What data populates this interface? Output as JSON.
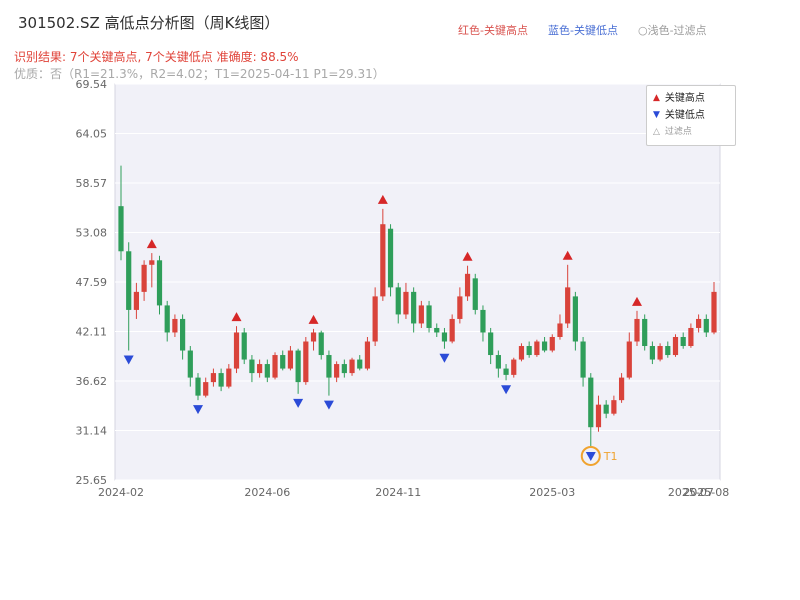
{
  "header": {
    "title": "301502.SZ 高低点分析图（周K线图）",
    "legend_top": [
      {
        "label": "红色-关键高点",
        "color": "#d9534f"
      },
      {
        "label": "蓝色-关键低点",
        "color": "#4a6fd4"
      },
      {
        "label": "○浅色-过滤点",
        "color": "#9a9a9a"
      }
    ],
    "result_line": "识别结果: 7个关键高点, 7个关键低点   准确度: 88.5%",
    "quality_line": "优质：否（R1=21.3%，R2=4.02；T1=2025-04-11 P1=29.31）",
    "recognition": {
      "key_high_count": 7,
      "key_low_count": 7,
      "accuracy": "88.5%"
    }
  },
  "chart_data": {
    "type": "candlestick",
    "symbol": "301502.SZ",
    "period": "weekly",
    "title": "301502.SZ 高低点分析图（周K线图）",
    "ylim": [
      25.65,
      69.54
    ],
    "y_ticks": [
      69.54,
      64.05,
      58.57,
      53.08,
      47.59,
      42.11,
      36.62,
      31.14,
      25.65
    ],
    "x_ticks": [
      {
        "index": 0,
        "label": "2024-02"
      },
      {
        "index": 19,
        "label": "2024-06"
      },
      {
        "index": 36,
        "label": "2024-11"
      },
      {
        "index": 56,
        "label": "2025-03"
      },
      {
        "index": 74,
        "label": "2025-07"
      },
      {
        "index": 76,
        "label": "2025-08"
      }
    ],
    "candles": [
      [
        56.0,
        60.5,
        50.0,
        51.0
      ],
      [
        51.0,
        52.0,
        40.0,
        44.5
      ],
      [
        44.5,
        47.5,
        43.5,
        46.5
      ],
      [
        46.5,
        50.0,
        45.5,
        49.5
      ],
      [
        49.5,
        50.8,
        47.0,
        50.0
      ],
      [
        50.0,
        50.5,
        44.0,
        45.0
      ],
      [
        45.0,
        45.5,
        41.0,
        42.0
      ],
      [
        42.0,
        44.0,
        41.5,
        43.5
      ],
      [
        43.5,
        44.0,
        39.0,
        40.0
      ],
      [
        40.0,
        40.5,
        36.0,
        37.0
      ],
      [
        37.0,
        37.5,
        34.5,
        35.0
      ],
      [
        35.0,
        37.0,
        34.8,
        36.5
      ],
      [
        36.5,
        38.0,
        36.0,
        37.5
      ],
      [
        37.5,
        38.0,
        35.5,
        36.0
      ],
      [
        36.0,
        38.5,
        35.8,
        38.0
      ],
      [
        38.0,
        42.7,
        37.5,
        42.0
      ],
      [
        42.0,
        42.5,
        38.5,
        39.0
      ],
      [
        39.0,
        39.5,
        36.5,
        37.5
      ],
      [
        37.5,
        39.0,
        37.0,
        38.5
      ],
      [
        38.5,
        39.0,
        36.5,
        37.0
      ],
      [
        37.0,
        39.8,
        36.8,
        39.5
      ],
      [
        39.5,
        40.0,
        37.8,
        38.0
      ],
      [
        38.0,
        40.5,
        37.8,
        40.0
      ],
      [
        40.0,
        40.2,
        35.2,
        36.5
      ],
      [
        36.5,
        41.5,
        36.2,
        41.0
      ],
      [
        41.0,
        42.4,
        40.0,
        42.0
      ],
      [
        42.0,
        42.2,
        39.0,
        39.5
      ],
      [
        39.5,
        40.0,
        35.0,
        37.0
      ],
      [
        37.0,
        38.8,
        36.5,
        38.5
      ],
      [
        38.5,
        39.0,
        37.0,
        37.5
      ],
      [
        37.5,
        39.2,
        37.2,
        39.0
      ],
      [
        39.0,
        39.5,
        37.8,
        38.0
      ],
      [
        38.0,
        41.5,
        37.8,
        41.0
      ],
      [
        41.0,
        47.0,
        40.5,
        46.0
      ],
      [
        46.0,
        55.7,
        45.5,
        54.0
      ],
      [
        53.5,
        54.0,
        46.0,
        47.0
      ],
      [
        47.0,
        47.5,
        43.0,
        44.0
      ],
      [
        44.0,
        47.5,
        43.5,
        46.5
      ],
      [
        46.5,
        47.0,
        42.0,
        43.0
      ],
      [
        43.0,
        45.5,
        42.5,
        45.0
      ],
      [
        45.0,
        45.5,
        42.0,
        42.5
      ],
      [
        42.5,
        43.0,
        41.5,
        42.0
      ],
      [
        42.0,
        42.5,
        40.2,
        41.0
      ],
      [
        41.0,
        44.0,
        40.8,
        43.5
      ],
      [
        43.5,
        47.0,
        43.0,
        46.0
      ],
      [
        46.0,
        49.4,
        45.5,
        48.5
      ],
      [
        48.0,
        48.5,
        44.0,
        44.5
      ],
      [
        44.5,
        45.0,
        41.0,
        42.0
      ],
      [
        42.0,
        42.5,
        38.5,
        39.5
      ],
      [
        39.5,
        40.0,
        37.0,
        38.0
      ],
      [
        38.0,
        38.5,
        36.7,
        37.3
      ],
      [
        37.3,
        39.2,
        37.0,
        39.0
      ],
      [
        39.0,
        40.8,
        38.8,
        40.5
      ],
      [
        40.5,
        41.0,
        39.2,
        39.5
      ],
      [
        39.5,
        41.2,
        39.3,
        41.0
      ],
      [
        41.0,
        41.5,
        39.8,
        40.0
      ],
      [
        40.0,
        41.8,
        39.8,
        41.5
      ],
      [
        41.5,
        44.0,
        41.2,
        43.0
      ],
      [
        43.0,
        49.5,
        42.5,
        47.0
      ],
      [
        46.0,
        46.5,
        40.0,
        41.0
      ],
      [
        41.0,
        41.5,
        36.0,
        37.0
      ],
      [
        37.0,
        37.5,
        29.31,
        31.5
      ],
      [
        31.5,
        35.0,
        31.0,
        34.0
      ],
      [
        34.0,
        34.5,
        32.5,
        33.0
      ],
      [
        33.0,
        35.0,
        32.8,
        34.5
      ],
      [
        34.5,
        37.5,
        34.2,
        37.0
      ],
      [
        37.0,
        42.0,
        36.8,
        41.0
      ],
      [
        41.0,
        44.4,
        40.5,
        43.5
      ],
      [
        43.5,
        44.0,
        40.0,
        40.5
      ],
      [
        40.5,
        41.0,
        38.5,
        39.0
      ],
      [
        39.0,
        40.8,
        38.8,
        40.5
      ],
      [
        40.5,
        41.0,
        39.2,
        39.5
      ],
      [
        39.5,
        41.8,
        39.3,
        41.5
      ],
      [
        41.5,
        42.0,
        40.2,
        40.5
      ],
      [
        40.5,
        43.0,
        40.3,
        42.5
      ],
      [
        42.5,
        44.0,
        42.0,
        43.5
      ],
      [
        43.5,
        44.0,
        41.5,
        42.0
      ],
      [
        42.0,
        47.6,
        41.8,
        46.5
      ]
    ],
    "key_highs": [
      {
        "index": 4,
        "price": 50.8
      },
      {
        "index": 15,
        "price": 42.7
      },
      {
        "index": 25,
        "price": 42.4
      },
      {
        "index": 34,
        "price": 55.7
      },
      {
        "index": 45,
        "price": 49.4
      },
      {
        "index": 58,
        "price": 49.5
      },
      {
        "index": 67,
        "price": 44.4
      }
    ],
    "key_lows": [
      {
        "index": 1,
        "price": 40.0
      },
      {
        "index": 10,
        "price": 34.5
      },
      {
        "index": 23,
        "price": 35.2
      },
      {
        "index": 27,
        "price": 35.0
      },
      {
        "index": 42,
        "price": 40.2
      },
      {
        "index": 50,
        "price": 36.7
      },
      {
        "index": 61,
        "price": 29.31
      }
    ],
    "t1_marker": {
      "index": 61,
      "price": 29.31,
      "label": "T1",
      "date": "2025-04-11"
    },
    "filtered_points": [],
    "legend_box": [
      {
        "symbol": "▲",
        "label": "关键高点"
      },
      {
        "symbol": "▼",
        "label": "关键低点"
      },
      {
        "symbol": "△",
        "label": "过滤点"
      }
    ],
    "colors": {
      "up": "#d9433b",
      "down": "#2f9e5a",
      "key_high": "#d62728",
      "key_low": "#2b4bd7",
      "t1_ring": "#f0a32f",
      "plot_bg": "#f1f1f8",
      "grid": "#ffffff",
      "axis_text": "#666666"
    },
    "legend_position": "upper right",
    "grid": true
  }
}
